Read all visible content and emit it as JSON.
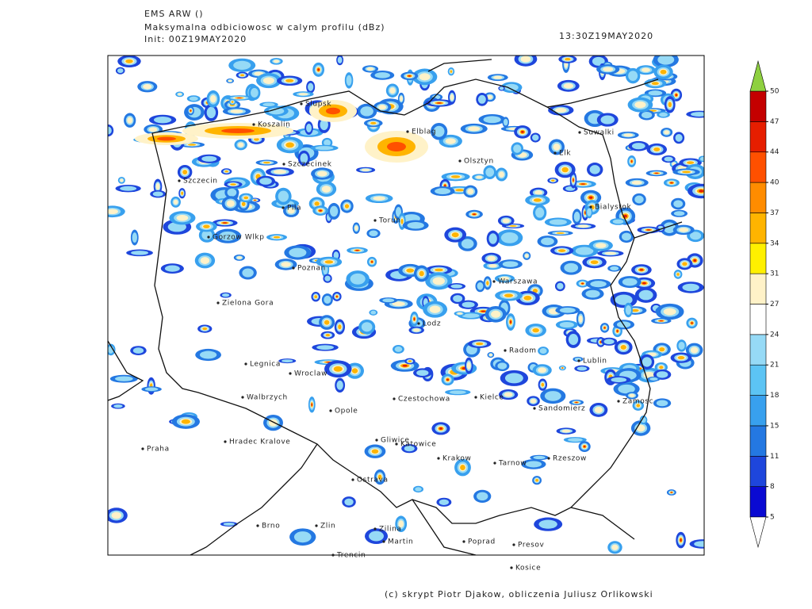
{
  "header": {
    "model": "EMS ARW ()",
    "product": "Maksymalna odbiciowosc w calym profilu (dBz)",
    "init": "Init: 00Z19MAY2020",
    "valid": "13:30Z19MAY2020"
  },
  "colorbar": {
    "ticks": [
      5,
      8,
      11,
      15,
      18,
      21,
      24,
      27,
      31,
      34,
      37,
      40,
      44,
      47,
      50
    ],
    "colors": [
      "#0a0ad2",
      "#1e46dc",
      "#2478e2",
      "#38a0ee",
      "#5cc4f4",
      "#96daf6",
      "#ffffff",
      "#fff2c8",
      "#fff000",
      "#ffb400",
      "#ff8c00",
      "#ff5000",
      "#e61e00",
      "#c40000"
    ],
    "below_color": "#ffffff",
    "above_color": "#8ed040"
  },
  "cities": [
    "Slupsk",
    "Koszalin",
    "Elblag",
    "Suwalki",
    "Elk",
    "Olsztyn",
    "Szczecinek",
    "Szczecin",
    "Bialystok",
    "Pila",
    "Torun",
    "Gorzow Wlkp",
    "Poznan",
    "Warszawa",
    "Zielona Gora",
    "Lodz",
    "Radom",
    "Lublin",
    "Legnica",
    "Wroclaw",
    "Walbrzych",
    "Czestochowa",
    "Kielce",
    "Zamosc",
    "Opole",
    "Sandomierz",
    "Hradec Kralove",
    "Gliwice",
    "Katowice",
    "Praha",
    "Krakow",
    "Tarnow",
    "Rzeszow",
    "Ostrava",
    "Brno",
    "Zlin",
    "Zilina",
    "Martin",
    "Poprad",
    "Presov",
    "Trencin",
    "Kosice"
  ],
  "footer": "(c) skrypt Piotr Djakow, obliczenia Juliusz Orlikowski"
}
